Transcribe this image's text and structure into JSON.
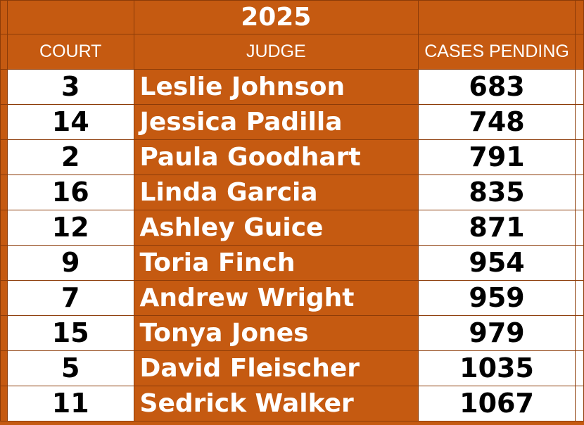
{
  "sheet": {
    "year": "2025",
    "headers": {
      "court": "COURT",
      "judge": "JUDGE",
      "cases": "CASES PENDING"
    },
    "rows": [
      {
        "court": "3",
        "judge": "Leslie Johnson",
        "cases": "683"
      },
      {
        "court": "14",
        "judge": "Jessica Padilla",
        "cases": "748"
      },
      {
        "court": "2",
        "judge": "Paula Goodhart",
        "cases": "791"
      },
      {
        "court": "16",
        "judge": "Linda Garcia",
        "cases": "835"
      },
      {
        "court": "12",
        "judge": "Ashley Guice",
        "cases": "871"
      },
      {
        "court": "9",
        "judge": "Toria Finch",
        "cases": "954"
      },
      {
        "court": "7",
        "judge": "Andrew Wright",
        "cases": "959"
      },
      {
        "court": "15",
        "judge": "Tonya Jones",
        "cases": "979"
      },
      {
        "court": "5",
        "judge": "David Fleischer",
        "cases": "1035"
      },
      {
        "court": "11",
        "judge": "Sedrick Walker",
        "cases": "1067"
      }
    ]
  },
  "colors": {
    "accent": "#C55A11",
    "text_on_accent": "#ffffff",
    "cell_background": "#ffffff",
    "cell_text": "#000000"
  }
}
